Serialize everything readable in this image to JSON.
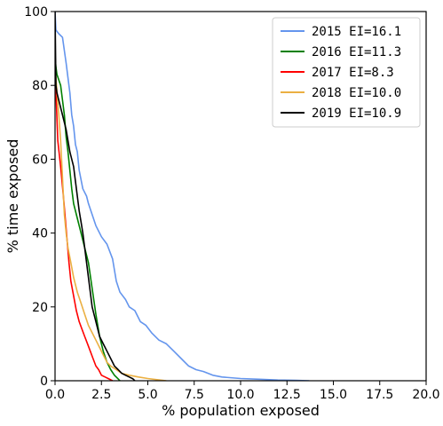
{
  "chart_data": {
    "type": "line",
    "xlabel": "% population exposed",
    "ylabel": "% time exposed",
    "xlim": [
      0,
      20
    ],
    "ylim": [
      0,
      100
    ],
    "xticks": [
      "0.0",
      "2.5",
      "5.0",
      "7.5",
      "10.0",
      "12.5",
      "15.0",
      "17.5",
      "20.0"
    ],
    "yticks": [
      "0",
      "20",
      "40",
      "60",
      "80",
      "100"
    ],
    "grid": false,
    "legend_position": "top-right",
    "series": [
      {
        "name": "2015 EI=16.1",
        "color": "#6495ed",
        "x": [
          0,
          0.05,
          0.2,
          0.4,
          0.6,
          0.7,
          0.8,
          0.9,
          1.0,
          1.1,
          1.2,
          1.3,
          1.5,
          1.7,
          1.8,
          2.0,
          2.2,
          2.5,
          2.8,
          3.1,
          3.2,
          3.3,
          3.5,
          3.8,
          4.0,
          4.3,
          4.6,
          4.9,
          5.2,
          5.6,
          6.0,
          6.4,
          6.8,
          7.2,
          7.6,
          8.0,
          8.5,
          9.0,
          10.0,
          11.0,
          12.0,
          13.0,
          13.7
        ],
        "y": [
          100,
          95,
          94,
          93,
          86,
          82,
          78,
          72,
          69,
          64,
          62,
          57,
          52,
          50,
          48,
          45,
          42,
          39,
          37,
          33,
          30,
          27,
          24,
          22,
          20,
          19,
          16,
          15,
          13,
          11,
          10,
          8,
          6,
          4,
          3,
          2.5,
          1.5,
          1,
          0.6,
          0.4,
          0.2,
          0.1,
          0
        ]
      },
      {
        "name": "2016 EI=11.3",
        "color": "#008000",
        "x": [
          0,
          0.05,
          0.1,
          0.3,
          0.5,
          0.6,
          0.7,
          0.8,
          0.9,
          1.0,
          1.2,
          1.4,
          1.6,
          1.8,
          2.0,
          2.2,
          2.4,
          2.6,
          2.8,
          3.0,
          3.2,
          3.4,
          3.5
        ],
        "y": [
          88,
          85,
          83,
          80,
          72,
          66,
          62,
          57,
          52,
          48,
          44,
          40,
          36,
          32,
          25,
          18,
          12,
          8,
          5,
          3,
          1.5,
          0.5,
          0
        ]
      },
      {
        "name": "2017 EI=8.3",
        "color": "#ff0000",
        "x": [
          0,
          0.05,
          0.15,
          0.3,
          0.45,
          0.55,
          0.65,
          0.75,
          0.85,
          1.0,
          1.15,
          1.3,
          1.45,
          1.6,
          1.75,
          1.9,
          2.05,
          2.2,
          2.35,
          2.5,
          2.7,
          2.9,
          3.1
        ],
        "y": [
          90,
          78,
          65,
          58,
          50,
          44,
          38,
          32,
          27,
          23,
          19,
          16,
          14,
          12,
          10,
          8,
          6,
          4,
          3,
          1.5,
          1,
          0.5,
          0
        ]
      },
      {
        "name": "2018 EI=10.0",
        "color": "#ebb042",
        "x": [
          0,
          0.05,
          0.2,
          0.3,
          0.4,
          0.5,
          0.6,
          0.7,
          0.85,
          1.0,
          1.2,
          1.4,
          1.6,
          1.8,
          2.0,
          2.2,
          2.4,
          2.6,
          2.8,
          3.0,
          3.3,
          3.6,
          4.0,
          4.5,
          5.0,
          5.5,
          6.0
        ],
        "y": [
          85,
          82,
          72,
          65,
          55,
          45,
          40,
          36,
          32,
          28,
          24,
          21,
          18,
          15,
          13,
          11,
          9,
          7,
          5,
          4,
          3,
          2,
          1.5,
          1,
          0.6,
          0.3,
          0
        ]
      },
      {
        "name": "2019 EI=10.9",
        "color": "#000000",
        "x": [
          0,
          0.05,
          0.1,
          0.2,
          0.4,
          0.6,
          0.8,
          1.0,
          1.1,
          1.2,
          1.3,
          1.4,
          1.5,
          1.6,
          1.7,
          1.8,
          1.9,
          2.0,
          2.2,
          2.4,
          2.6,
          2.8,
          3.0,
          3.2,
          3.4,
          3.6,
          3.8,
          4.0,
          4.2,
          4.3
        ],
        "y": [
          100,
          80,
          78,
          76,
          72,
          68,
          62,
          58,
          54,
          50,
          46,
          43,
          40,
          36,
          32,
          28,
          24,
          20,
          16,
          12,
          10,
          8,
          6,
          4,
          3,
          2,
          1.5,
          1,
          0.5,
          0
        ]
      }
    ]
  }
}
